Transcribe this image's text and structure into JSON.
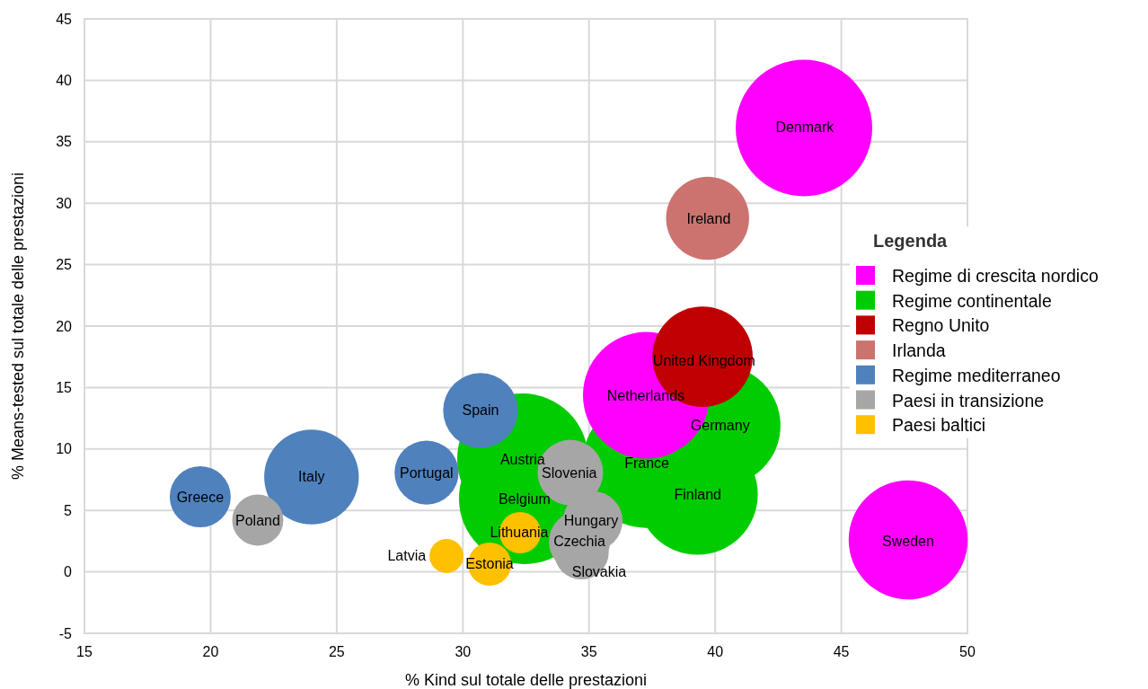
{
  "chart_data": {
    "type": "bubble",
    "xlabel": "% Kind sul totale delle prestazioni",
    "ylabel": "% Means-tested sul totale delle prestazioni",
    "legend_title": "Legenda",
    "legend": "right",
    "grid": true,
    "xlim": [
      15,
      50
    ],
    "xticks": [
      15,
      20,
      25,
      30,
      35,
      40,
      45,
      50
    ],
    "ylim": [
      -5,
      45
    ],
    "yticks": [
      -5,
      0,
      5,
      10,
      15,
      20,
      25,
      30,
      35,
      40,
      45
    ],
    "series": [
      {
        "name": "Regime di crescita nordico",
        "color": "#ff00ff",
        "x": [
          43.52,
          47.65,
          37.27
        ],
        "values": [
          36.12,
          2.6,
          14.37
        ],
        "sizes": [
          1,
          0.76,
          0.86
        ]
      },
      {
        "name": "Regime continentale",
        "color": "#00cc00",
        "x": [
          40.2,
          39.3,
          37.29,
          32.37,
          32.44
        ],
        "values": [
          11.9,
          6.3,
          8.82,
          9.18,
          5.96
        ],
        "sizes": [
          0.78,
          0.78,
          0.89,
          0.92,
          0.92
        ]
      },
      {
        "name": "Regno Unito",
        "color": "#c00000",
        "x": [
          39.5
        ],
        "values": [
          17.5
        ],
        "sizes": [
          0.54
        ]
      },
      {
        "name": "Irlanda",
        "color": "#cc7370",
        "x": [
          39.7
        ],
        "values": [
          28.77
        ],
        "sizes": [
          0.37
        ]
      },
      {
        "name": "Regime mediterraneo",
        "color": "#4f81bd",
        "x": [
          30.7,
          24.0,
          28.56,
          19.59
        ],
        "values": [
          13.13,
          7.72,
          8.08,
          6.11
        ],
        "sizes": [
          0.3,
          0.48,
          0.22,
          0.2
        ]
      },
      {
        "name": "Paesi in transizione",
        "color": "#a6a6a6",
        "x": [
          21.87,
          34.26,
          35.15,
          34.62,
          34.7
        ],
        "values": [
          4.21,
          8.08,
          4.14,
          2.46,
          1.6
        ],
        "sizes": [
          0.14,
          0.23,
          0.19,
          0.2,
          0.16
        ]
      },
      {
        "name": "Paesi baltici",
        "color": "#ffc000",
        "x": [
          32.27,
          31.06,
          29.35
        ],
        "values": [
          3.19,
          0.63,
          1.29
        ],
        "sizes": [
          0.092,
          0.1,
          0.062
        ]
      }
    ],
    "annotations": [
      {
        "text": "Denmark",
        "x": 43.55,
        "y": 36.2
      },
      {
        "text": "Ireland",
        "x": 39.74,
        "y": 28.77
      },
      {
        "text": "United Kingdom",
        "x": 39.56,
        "y": 17.15
      },
      {
        "text": "Netherlands",
        "x": 37.25,
        "y": 14.37
      },
      {
        "text": "Germany",
        "x": 40.2,
        "y": 11.9
      },
      {
        "text": "France",
        "x": 37.29,
        "y": 8.82
      },
      {
        "text": "Finland",
        "x": 39.31,
        "y": 6.33
      },
      {
        "text": "Austria",
        "x": 32.37,
        "y": 9.18
      },
      {
        "text": "Belgium",
        "x": 32.44,
        "y": 5.96
      },
      {
        "text": "Sweden",
        "x": 47.65,
        "y": 2.46
      },
      {
        "text": "Spain",
        "x": 30.7,
        "y": 13.13
      },
      {
        "text": "Italy",
        "x": 24.0,
        "y": 7.72
      },
      {
        "text": "Portugal",
        "x": 28.56,
        "y": 8.08
      },
      {
        "text": "Greece",
        "x": 19.59,
        "y": 6.11
      },
      {
        "text": "Poland",
        "x": 21.87,
        "y": 4.21
      },
      {
        "text": "Slovenia",
        "x": 34.22,
        "y": 8.08
      },
      {
        "text": "Hungary",
        "x": 35.08,
        "y": 4.14
      },
      {
        "text": "Czechia",
        "x": 34.62,
        "y": 2.46
      },
      {
        "text": "Slovakia",
        "x": 35.4,
        "y": 0.04
      },
      {
        "text": "Lithuania",
        "x": 32.23,
        "y": 3.19
      },
      {
        "text": "Estonia",
        "x": 31.06,
        "y": 0.63
      },
      {
        "text": "Latvia",
        "x": 29.35,
        "y": 1.29
      }
    ]
  }
}
